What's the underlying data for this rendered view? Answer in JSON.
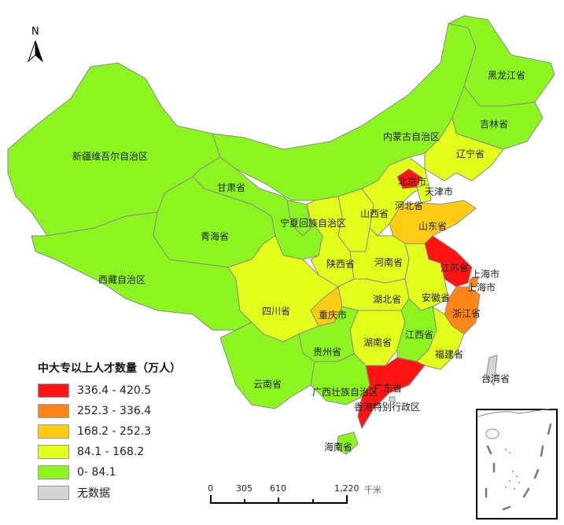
{
  "legend": {
    "title": "中大专以上人才数量（万人）",
    "classes": [
      {
        "label": "336.4 - 420.5",
        "color": "#ff1414"
      },
      {
        "label": "252.3 - 336.4",
        "color": "#ff8519"
      },
      {
        "label": "168.2 - 252.3",
        "color": "#ffcc14"
      },
      {
        "label": "84.1 - 168.2",
        "color": "#e2ff1c"
      },
      {
        "label": "0- 84.1",
        "color": "#8cf520"
      },
      {
        "label": "无数据",
        "color": "#d4d4d4"
      }
    ]
  },
  "scale_bar": {
    "ticks": [
      "0",
      "305",
      "610",
      "1,220"
    ],
    "unit": "千米"
  },
  "north_arrow": {
    "label": "N"
  },
  "provinces": [
    {
      "name": "新疆维吾尔自治区",
      "class": 4
    },
    {
      "name": "西藏自治区",
      "class": 4
    },
    {
      "name": "青海省",
      "class": 4
    },
    {
      "name": "甘肃省",
      "class": 4
    },
    {
      "name": "内蒙古自治区",
      "class": 4
    },
    {
      "name": "黑龙江省",
      "class": 4
    },
    {
      "name": "吉林省",
      "class": 4
    },
    {
      "name": "辽宁省",
      "class": 3
    },
    {
      "name": "宁夏回族自治区",
      "class": 4
    },
    {
      "name": "陕西省",
      "class": 3
    },
    {
      "name": "山西省",
      "class": 3
    },
    {
      "name": "河北省",
      "class": 3
    },
    {
      "name": "北京市",
      "class": 0
    },
    {
      "name": "天津市",
      "class": 3
    },
    {
      "name": "山东省",
      "class": 2
    },
    {
      "name": "河南省",
      "class": 3
    },
    {
      "name": "江苏省",
      "class": 0
    },
    {
      "name": "上海市",
      "class": 1
    },
    {
      "name": "安徽省",
      "class": 3
    },
    {
      "name": "浙江省",
      "class": 1
    },
    {
      "name": "湖北省",
      "class": 3
    },
    {
      "name": "重庆市",
      "class": 2
    },
    {
      "name": "四川省",
      "class": 3
    },
    {
      "name": "湖南省",
      "class": 3
    },
    {
      "name": "江西省",
      "class": 4
    },
    {
      "name": "福建省",
      "class": 3
    },
    {
      "name": "贵州省",
      "class": 4
    },
    {
      "name": "云南省",
      "class": 4
    },
    {
      "name": "广西壮族自治区",
      "class": 4
    },
    {
      "name": "广东省",
      "class": 0
    },
    {
      "name": "香港特别行政区",
      "class": 5
    },
    {
      "name": "海南省",
      "class": 4
    },
    {
      "name": "台湾省",
      "class": 5
    }
  ],
  "extra_labels": [
    "上海市"
  ]
}
